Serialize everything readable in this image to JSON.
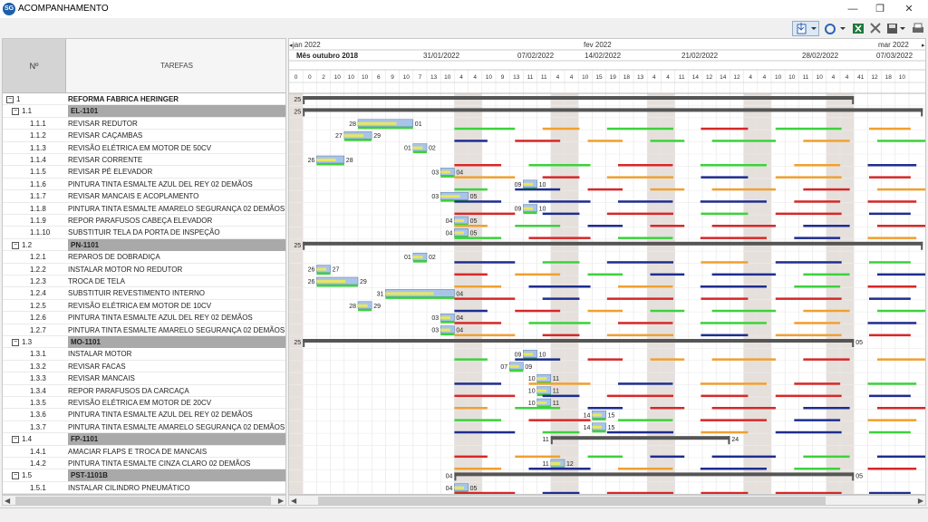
{
  "window": {
    "title": "ACOMPANHAMENTO",
    "icon_text": "SG"
  },
  "grid": {
    "col_number": "Nº",
    "col_tasks": "TAREFAS",
    "rows": [
      {
        "num": "1",
        "name": "REFORMA FABRICA HERINGER",
        "type": "top",
        "expand": "−"
      },
      {
        "num": "1.1",
        "name": "EL-1101",
        "type": "grp",
        "expand": "−"
      },
      {
        "num": "1.1.1",
        "name": "REVISAR REDUTOR"
      },
      {
        "num": "1.1.2",
        "name": "REVISAR CAÇAMBAS"
      },
      {
        "num": "1.1.3",
        "name": "REVISÃO ELÉTRICA EM MOTOR DE 50CV"
      },
      {
        "num": "1.1.4",
        "name": "REVISAR CORRENTE"
      },
      {
        "num": "1.1.5",
        "name": "REVISAR PÉ ELEVADOR"
      },
      {
        "num": "1.1.6",
        "name": "PINTURA TINTA ESMALTE AZUL DEL REY 02 DEMÃOS"
      },
      {
        "num": "1.1.7",
        "name": "REVISAR MANCAIS E ACOPLAMENTO"
      },
      {
        "num": "1.1.8",
        "name": "PINTURA TINTA ESMALTE AMARELO SEGURANÇA 02 DEMÃOS"
      },
      {
        "num": "1.1.9",
        "name": "REPOR PARAFUSOS CABEÇA ELEVADOR"
      },
      {
        "num": "1.1.10",
        "name": "SUBSTITUIR TELA DA PORTA DE INSPEÇÃO"
      },
      {
        "num": "1.2",
        "name": "PN-1101",
        "type": "grp",
        "expand": "−"
      },
      {
        "num": "1.2.1",
        "name": "REPAROS DE DOBRADIÇA"
      },
      {
        "num": "1.2.2",
        "name": "INSTALAR MOTOR NO REDUTOR"
      },
      {
        "num": "1.2.3",
        "name": "TROCA DE TELA"
      },
      {
        "num": "1.2.4",
        "name": "SUBSTITUIR REVESTIMENTO INTERNO"
      },
      {
        "num": "1.2.5",
        "name": "REVISÃO ELÉTRICA EM MOTOR DE 10CV"
      },
      {
        "num": "1.2.6",
        "name": "PINTURA TINTA ESMALTE AZUL DEL REY 02 DEMÃOS"
      },
      {
        "num": "1.2.7",
        "name": "PINTURA TINTA ESMALTE AMARELO SEGURANÇA 02 DEMÃOS"
      },
      {
        "num": "1.3",
        "name": "MO-1101",
        "type": "grp",
        "expand": "−"
      },
      {
        "num": "1.3.1",
        "name": "INSTALAR MOTOR"
      },
      {
        "num": "1.3.2",
        "name": "REVISAR FACAS"
      },
      {
        "num": "1.3.3",
        "name": "REVISAR MANCAIS"
      },
      {
        "num": "1.3.4",
        "name": "REPOR PARAFUSOS DA CARCAÇA"
      },
      {
        "num": "1.3.5",
        "name": "REVISÃO ELÉTRICA EM MOTOR DE 20CV"
      },
      {
        "num": "1.3.6",
        "name": "PINTURA TINTA ESMALTE AZUL DEL REY 02 DEMÃOS"
      },
      {
        "num": "1.3.7",
        "name": "PINTURA TINTA ESMALTE AMARELO SEGURANÇA 02 DEMÃOS"
      },
      {
        "num": "1.4",
        "name": "FP-1101",
        "type": "grp",
        "expand": "−"
      },
      {
        "num": "1.4.1",
        "name": "AMACIAR FLAPS E TROCA DE MANCAIS"
      },
      {
        "num": "1.4.2",
        "name": "PINTURA TINTA ESMALTE CINZA CLARO 02 DEMÃOS"
      },
      {
        "num": "1.5",
        "name": "PST-1101B",
        "type": "grp",
        "expand": "−"
      },
      {
        "num": "1.5.1",
        "name": "INSTALAR CILINDRO PNEUMÁTICO"
      }
    ]
  },
  "timeline": {
    "months": [
      "jan 2022",
      "fev 2022",
      "mar 2022"
    ],
    "current_label": "Mês outubro 2018",
    "weeks": [
      "31/01/2022",
      "07/02/2022",
      "14/02/2022",
      "21/02/2022",
      "28/02/2022",
      "07/03/2022"
    ],
    "hours": [
      "0",
      "0",
      "2",
      "10",
      "10",
      "10",
      "6",
      "9",
      "10",
      "7",
      "13",
      "10",
      "4",
      "4",
      "10",
      "9",
      "13",
      "11",
      "11",
      "4",
      "4",
      "10",
      "15",
      "19",
      "18",
      "13",
      "4",
      "4",
      "11",
      "14",
      "12",
      "14",
      "12",
      "4",
      "4",
      "10",
      "10",
      "11",
      "10",
      "4",
      "4",
      "41",
      "12",
      "18",
      "10"
    ],
    "tasks": [
      {
        "row": 0,
        "start": 1,
        "end": 41,
        "label_left": "25",
        "label_right": "",
        "kind": "summary"
      },
      {
        "row": 1,
        "start": 1,
        "end": 46,
        "label_left": "25",
        "label_right": "",
        "kind": "summary"
      },
      {
        "row": 2,
        "start": 5,
        "end": 9,
        "label_left": "28",
        "label_right": "01",
        "kind": "bar"
      },
      {
        "row": 3,
        "start": 4,
        "end": 6,
        "label_left": "27",
        "label_right": "29",
        "kind": "bar"
      },
      {
        "row": 4,
        "start": 9,
        "end": 10,
        "label_left": "01",
        "label_right": "02",
        "kind": "bar"
      },
      {
        "row": 5,
        "start": 2,
        "end": 4,
        "label_left": "26",
        "label_right": "28",
        "kind": "bar"
      },
      {
        "row": 6,
        "start": 11,
        "end": 12,
        "label_left": "03",
        "label_right": "04",
        "kind": "bar"
      },
      {
        "row": 7,
        "start": 17,
        "end": 18,
        "label_left": "09",
        "label_right": "10",
        "kind": "bar"
      },
      {
        "row": 8,
        "start": 11,
        "end": 13,
        "label_left": "03",
        "label_right": "05",
        "kind": "bar"
      },
      {
        "row": 9,
        "start": 17,
        "end": 18,
        "label_left": "09",
        "label_right": "10",
        "kind": "bar"
      },
      {
        "row": 10,
        "start": 12,
        "end": 13,
        "label_left": "04",
        "label_right": "05",
        "kind": "bar"
      },
      {
        "row": 11,
        "start": 12,
        "end": 13,
        "label_left": "04",
        "label_right": "05",
        "kind": "bar"
      },
      {
        "row": 12,
        "start": 1,
        "end": 46,
        "label_left": "25",
        "label_right": "",
        "kind": "summary"
      },
      {
        "row": 13,
        "start": 9,
        "end": 10,
        "label_left": "01",
        "label_right": "02",
        "kind": "bar"
      },
      {
        "row": 14,
        "start": 2,
        "end": 3,
        "label_left": "26",
        "label_right": "27",
        "kind": "bar"
      },
      {
        "row": 15,
        "start": 2,
        "end": 5,
        "label_left": "26",
        "label_right": "29",
        "kind": "bar"
      },
      {
        "row": 16,
        "start": 7,
        "end": 12,
        "label_left": "31",
        "label_right": "04",
        "kind": "bar"
      },
      {
        "row": 17,
        "start": 5,
        "end": 6,
        "label_left": "28",
        "label_right": "29",
        "kind": "bar"
      },
      {
        "row": 18,
        "start": 11,
        "end": 12,
        "label_left": "03",
        "label_right": "04",
        "kind": "bar"
      },
      {
        "row": 19,
        "start": 11,
        "end": 12,
        "label_left": "03",
        "label_right": "04",
        "kind": "bar"
      },
      {
        "row": 20,
        "start": 1,
        "end": 41,
        "label_left": "25",
        "label_right": "05",
        "kind": "summary"
      },
      {
        "row": 21,
        "start": 17,
        "end": 18,
        "label_left": "09",
        "label_right": "10",
        "kind": "bar"
      },
      {
        "row": 22,
        "start": 16,
        "end": 17,
        "label_left": "07",
        "label_right": "09",
        "kind": "bar"
      },
      {
        "row": 23,
        "start": 18,
        "end": 19,
        "label_left": "10",
        "label_right": "11",
        "kind": "bar"
      },
      {
        "row": 24,
        "start": 18,
        "end": 19,
        "label_left": "10",
        "label_right": "11",
        "kind": "bar"
      },
      {
        "row": 25,
        "start": 18,
        "end": 19,
        "label_left": "10",
        "label_right": "11",
        "kind": "bar"
      },
      {
        "row": 26,
        "start": 22,
        "end": 23,
        "label_left": "14",
        "label_right": "15",
        "kind": "bar"
      },
      {
        "row": 27,
        "start": 22,
        "end": 23,
        "label_left": "14",
        "label_right": "15",
        "kind": "bar"
      },
      {
        "row": 28,
        "start": 19,
        "end": 32,
        "label_left": "11",
        "label_right": "24",
        "kind": "summary"
      },
      {
        "row": 30,
        "start": 19,
        "end": 20,
        "label_left": "11",
        "label_right": "12",
        "kind": "bar"
      },
      {
        "row": 31,
        "start": 12,
        "end": 41,
        "label_left": "04",
        "label_right": "05",
        "kind": "summary"
      },
      {
        "row": 32,
        "start": 12,
        "end": 13,
        "label_left": "04",
        "label_right": "05",
        "kind": "bar"
      }
    ]
  },
  "colors": {
    "weekend": "#e6e0dc",
    "bar_fill": "#a9c4ea",
    "progress": "#e8e85a",
    "blue": "#1f2d8f",
    "red": "#d62828",
    "orange": "#f0a030",
    "green": "#3dd13d",
    "summary": "#555555"
  }
}
